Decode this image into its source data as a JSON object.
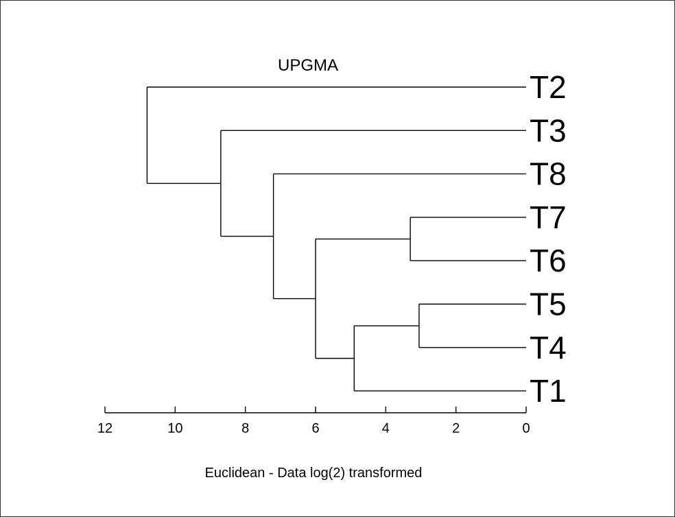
{
  "chart_data": {
    "type": "dendrogram",
    "title": "UPGMA",
    "xlabel": "Euclidean - Data log(2) transformed",
    "xlim": [
      12,
      0
    ],
    "xticks": [
      12,
      10,
      8,
      6,
      4,
      2,
      0
    ],
    "leaves": [
      "T2",
      "T3",
      "T8",
      "T7",
      "T6",
      "T5",
      "T4",
      "T1"
    ],
    "merges": [
      {
        "id": "n1",
        "children": [
          "T7",
          "T6"
        ],
        "height": 3.3
      },
      {
        "id": "n2",
        "children": [
          "T5",
          "T4"
        ],
        "height": 3.05
      },
      {
        "id": "n3",
        "children": [
          "n2",
          "T1"
        ],
        "height": 4.9
      },
      {
        "id": "n4",
        "children": [
          "n1",
          "n3"
        ],
        "height": 6.0
      },
      {
        "id": "n5",
        "children": [
          "T8",
          "n4"
        ],
        "height": 7.2
      },
      {
        "id": "n6",
        "children": [
          "T3",
          "n5"
        ],
        "height": 8.7
      },
      {
        "id": "n7",
        "children": [
          "T2",
          "n6"
        ],
        "height": 10.8
      }
    ]
  }
}
